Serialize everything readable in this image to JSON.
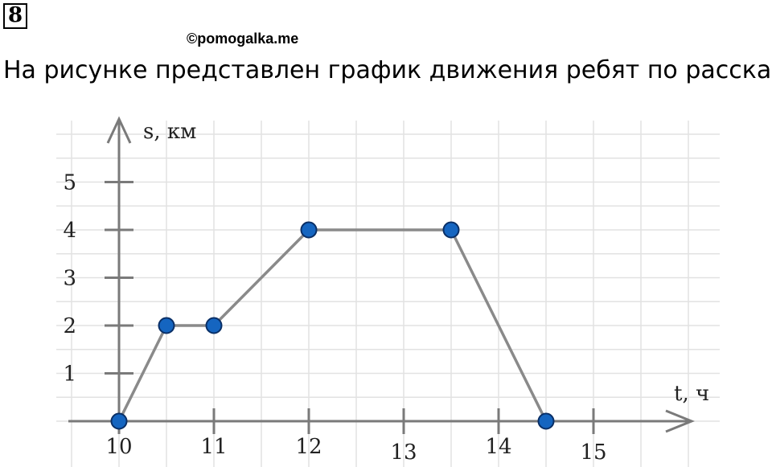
{
  "header": {
    "task_number": "8",
    "watermark": "©pomogalka.me",
    "heading": "На рисунке представлен график движения ребят по рассказу"
  },
  "colors": {
    "grid": "#e2e2e2",
    "axis": "#7a7a7a",
    "line": "#8a8a8a",
    "point_fill": "#1565c0",
    "point_stroke": "#0a2f66"
  },
  "chart_data": {
    "type": "line",
    "xlabel": "t, ч",
    "ylabel": "s, км",
    "xlim": [
      10,
      16
    ],
    "ylim": [
      0,
      6
    ],
    "x_ticks": [
      10,
      11,
      12,
      13,
      14,
      15
    ],
    "y_ticks": [
      1,
      2,
      3,
      4,
      5
    ],
    "grid": true,
    "series": [
      {
        "x": [
          10,
          10.5,
          11,
          12,
          13.5,
          14.5
        ],
        "y": [
          0,
          2,
          2,
          4,
          4,
          0
        ]
      }
    ]
  }
}
